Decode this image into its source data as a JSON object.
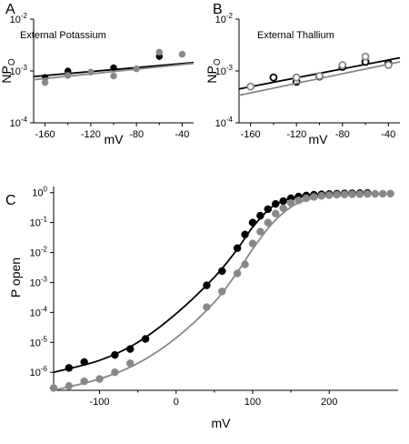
{
  "chart_data": [
    {
      "panel_label": "A",
      "type": "scatter",
      "annotation": "External Potassium",
      "xlabel": "mV",
      "ylabel_main": "NP",
      "ylabel_sub": "O",
      "xlim": [
        -170,
        -30
      ],
      "ylim": [
        0.0001,
        0.01
      ],
      "yscale": "log",
      "x_ticks": [
        -160,
        -120,
        -80,
        -40
      ],
      "y_ticks": [
        0.0001,
        0.001,
        0.01
      ],
      "y_tick_bases": [
        "10",
        "10",
        "10"
      ],
      "y_tick_exps": [
        "-4",
        "-3",
        "-2"
      ],
      "grid": false,
      "series": [
        {
          "color": "#000000",
          "marker": "filled-circle",
          "points": [
            {
              "x": -160,
              "y": 0.00075
            },
            {
              "x": -140,
              "y": 0.001
            },
            {
              "x": -100,
              "y": 0.00115
            },
            {
              "x": -60,
              "y": 0.0019
            }
          ],
          "fit": {
            "x": [
              -170,
              -30
            ],
            "y": [
              0.00078,
              0.00145
            ]
          }
        },
        {
          "color": "#888888",
          "marker": "filled-circle",
          "points": [
            {
              "x": -160,
              "y": 0.0006
            },
            {
              "x": -140,
              "y": 0.00082
            },
            {
              "x": -120,
              "y": 0.00095
            },
            {
              "x": -100,
              "y": 0.0008
            },
            {
              "x": -80,
              "y": 0.0011
            },
            {
              "x": -60,
              "y": 0.0023
            },
            {
              "x": -40,
              "y": 0.0021
            }
          ],
          "fit": {
            "x": [
              -170,
              -30
            ],
            "y": [
              0.00068,
              0.0014
            ]
          }
        }
      ]
    },
    {
      "panel_label": "B",
      "type": "scatter",
      "annotation": "External Thallium",
      "xlabel": "mV",
      "ylabel_main": "NP",
      "ylabel_sub": "O",
      "xlim": [
        -170,
        -30
      ],
      "ylim": [
        0.0001,
        0.01
      ],
      "yscale": "log",
      "x_ticks": [
        -160,
        -120,
        -80,
        -40
      ],
      "y_ticks": [
        0.0001,
        0.001,
        0.01
      ],
      "y_tick_bases": [
        "10",
        "10",
        "10"
      ],
      "y_tick_exps": [
        "-4",
        "-3",
        "-2"
      ],
      "grid": false,
      "series": [
        {
          "color": "#000000",
          "marker": "open-circle",
          "points": [
            {
              "x": -140,
              "y": 0.00075
            },
            {
              "x": -120,
              "y": 0.00062
            },
            {
              "x": -100,
              "y": 0.00078
            },
            {
              "x": -80,
              "y": 0.0012
            },
            {
              "x": -60,
              "y": 0.0015
            },
            {
              "x": -40,
              "y": 0.0014
            }
          ],
          "fit": {
            "x": [
              -170,
              -30
            ],
            "y": [
              0.00045,
              0.0018
            ]
          }
        },
        {
          "color": "#888888",
          "marker": "open-circle",
          "points": [
            {
              "x": -160,
              "y": 0.0005
            },
            {
              "x": -120,
              "y": 0.00075
            },
            {
              "x": -100,
              "y": 0.0008
            },
            {
              "x": -80,
              "y": 0.0013
            },
            {
              "x": -60,
              "y": 0.0019
            },
            {
              "x": -40,
              "y": 0.0013
            }
          ],
          "fit": {
            "x": [
              -170,
              -30
            ],
            "y": [
              0.00034,
              0.0015
            ]
          }
        }
      ]
    },
    {
      "panel_label": "C",
      "type": "scatter",
      "xlabel": "mV",
      "ylabel": "P open",
      "xlim": [
        -160,
        290
      ],
      "ylim": [
        2.5e-07,
        1.6
      ],
      "yscale": "log",
      "x_ticks": [
        -100,
        0,
        100,
        200
      ],
      "y_ticks": [
        1e-06,
        1e-05,
        0.0001,
        0.001,
        0.01,
        0.1,
        1
      ],
      "y_tick_bases": [
        "10",
        "10",
        "10",
        "10",
        "10",
        "10",
        "10"
      ],
      "y_tick_exps": [
        "-6",
        "-5",
        "-4",
        "-3",
        "-2",
        "-1",
        "0"
      ],
      "grid": false,
      "series": [
        {
          "color": "#000000",
          "marker": "filled-circle",
          "points": [
            {
              "x": -140,
              "y": 1.4e-06
            },
            {
              "x": -120,
              "y": 2.2e-06
            },
            {
              "x": -80,
              "y": 3.8e-06
            },
            {
              "x": -60,
              "y": 6e-06
            },
            {
              "x": -40,
              "y": 1.3e-05
            },
            {
              "x": 40,
              "y": 0.0008
            },
            {
              "x": 60,
              "y": 0.0024
            },
            {
              "x": 80,
              "y": 0.014
            },
            {
              "x": 90,
              "y": 0.04
            },
            {
              "x": 100,
              "y": 0.1
            },
            {
              "x": 110,
              "y": 0.17
            },
            {
              "x": 120,
              "y": 0.28
            },
            {
              "x": 130,
              "y": 0.42
            },
            {
              "x": 140,
              "y": 0.52
            },
            {
              "x": 150,
              "y": 0.65
            },
            {
              "x": 160,
              "y": 0.74
            },
            {
              "x": 170,
              "y": 0.8
            },
            {
              "x": 180,
              "y": 0.85
            },
            {
              "x": 190,
              "y": 0.88
            },
            {
              "x": 200,
              "y": 0.9
            },
            {
              "x": 210,
              "y": 0.92
            },
            {
              "x": 220,
              "y": 0.94
            },
            {
              "x": 230,
              "y": 0.95
            },
            {
              "x": 240,
              "y": 0.96
            },
            {
              "x": 250,
              "y": 0.97
            }
          ],
          "fit": {
            "type": "log-curve",
            "x": [
              -160,
              -100,
              -50,
              0,
              50,
              80,
              100,
              125,
              150,
              175,
              200,
              225,
              250
            ],
            "y": [
              1e-06,
              2.5e-06,
              1e-05,
              9e-05,
              0.0015,
              0.013,
              0.07,
              0.33,
              0.65,
              0.83,
              0.9,
              0.93,
              0.94
            ]
          }
        },
        {
          "color": "#888888",
          "marker": "filled-circle",
          "points": [
            {
              "x": -160,
              "y": 3e-07
            },
            {
              "x": -140,
              "y": 3.5e-07
            },
            {
              "x": -120,
              "y": 5e-07
            },
            {
              "x": -100,
              "y": 6e-07
            },
            {
              "x": -80,
              "y": 1e-06
            },
            {
              "x": -60,
              "y": 2e-06
            },
            {
              "x": 40,
              "y": 0.00015
            },
            {
              "x": 60,
              "y": 0.0005
            },
            {
              "x": 80,
              "y": 0.002
            },
            {
              "x": 90,
              "y": 0.004
            },
            {
              "x": 100,
              "y": 0.02
            },
            {
              "x": 110,
              "y": 0.05
            },
            {
              "x": 120,
              "y": 0.1
            },
            {
              "x": 130,
              "y": 0.2
            },
            {
              "x": 140,
              "y": 0.3
            },
            {
              "x": 150,
              "y": 0.45
            },
            {
              "x": 160,
              "y": 0.55
            },
            {
              "x": 170,
              "y": 0.65
            },
            {
              "x": 180,
              "y": 0.72
            },
            {
              "x": 190,
              "y": 0.78
            },
            {
              "x": 200,
              "y": 0.82
            },
            {
              "x": 210,
              "y": 0.85
            },
            {
              "x": 220,
              "y": 0.87
            },
            {
              "x": 230,
              "y": 0.88
            },
            {
              "x": 240,
              "y": 0.89
            },
            {
              "x": 250,
              "y": 0.9
            },
            {
              "x": 260,
              "y": 0.91
            },
            {
              "x": 270,
              "y": 0.92
            },
            {
              "x": 280,
              "y": 0.93
            }
          ],
          "fit": {
            "type": "log-curve",
            "x": [
              -160,
              -100,
              -50,
              0,
              50,
              80,
              100,
              125,
              150,
              175,
              200,
              225,
              250
            ],
            "y": [
              2.5e-07,
              6e-07,
              2e-06,
              1.4e-05,
              0.00022,
              0.0022,
              0.013,
              0.09,
              0.33,
              0.62,
              0.78,
              0.85,
              0.88
            ]
          }
        }
      ]
    }
  ]
}
